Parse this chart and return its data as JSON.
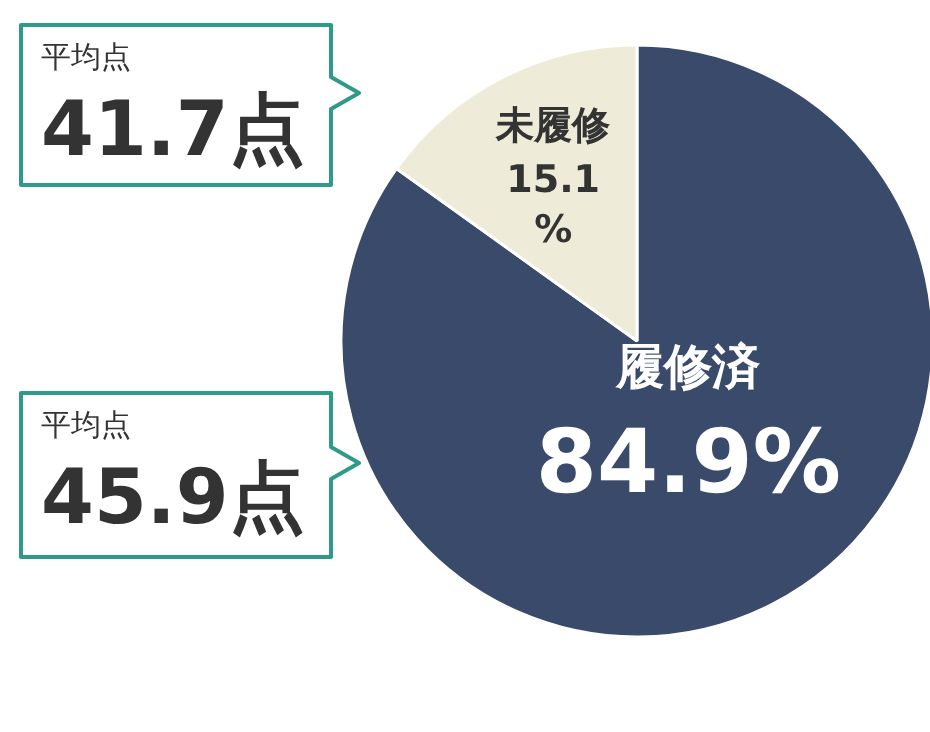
{
  "chart_data": {
    "type": "pie",
    "categories": [
      "履修済",
      "未履修"
    ],
    "values": [
      84.9,
      15.1
    ],
    "colors": [
      "#3a4a6b",
      "#eeecd9"
    ],
    "value_labels": [
      "84.9%",
      "15.1\n%"
    ],
    "annotations": [
      "平均点\n41.7点",
      "平均点\n45.9点"
    ]
  }
}
